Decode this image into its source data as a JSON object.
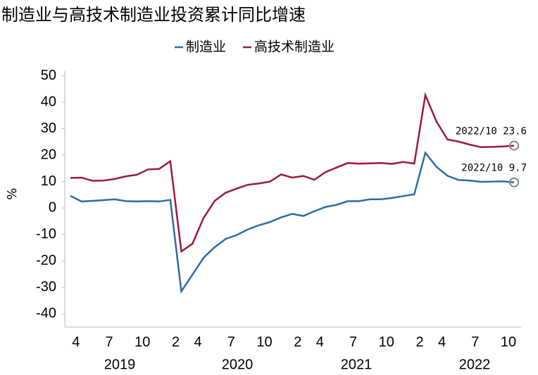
{
  "chart_data": {
    "type": "line",
    "title": "制造业与高技术制造业投资累计同比增速",
    "y_label": "%",
    "categories": [
      null,
      "4",
      null,
      null,
      "7",
      null,
      null,
      "10",
      null,
      null,
      "2",
      null,
      "4",
      null,
      null,
      "7",
      null,
      null,
      "10",
      null,
      null,
      "2",
      null,
      "4",
      null,
      null,
      "7",
      null,
      null,
      "10",
      null,
      null,
      "2",
      null,
      "4",
      null,
      null,
      "7",
      null,
      null,
      "10"
    ],
    "year_labels": [
      "2019",
      "2020",
      "2021",
      "2022"
    ],
    "series": [
      {
        "name": "制造业",
        "color": "#2e6ca4",
        "values": [
          4.6,
          2.5,
          2.7,
          3.0,
          3.3,
          2.6,
          2.5,
          2.6,
          2.5,
          3.1,
          -31.5,
          -25.2,
          -18.8,
          -14.8,
          -11.7,
          -10.2,
          -8.1,
          -6.5,
          -5.3,
          -3.5,
          -2.2,
          -3.0,
          -1.2,
          0.4,
          1.2,
          2.6,
          2.6,
          3.3,
          3.3,
          3.8,
          4.5,
          5.2,
          20.9,
          15.6,
          12.2,
          10.6,
          10.4,
          9.9,
          10.0,
          10.1,
          9.7
        ]
      },
      {
        "name": "高技术制造业",
        "color": "#9b1b3a",
        "values": [
          11.4,
          11.5,
          10.3,
          10.4,
          11.0,
          12.0,
          12.6,
          14.6,
          14.8,
          17.7,
          -16.4,
          -13.5,
          -3.8,
          2.7,
          5.8,
          7.4,
          8.8,
          9.3,
          10.0,
          12.7,
          11.5,
          12.1,
          10.7,
          13.6,
          15.3,
          17.0,
          16.8,
          16.9,
          17.0,
          16.7,
          17.4,
          16.8,
          42.7,
          32.7,
          25.9,
          25.1,
          24.0,
          23.0,
          23.1,
          23.3,
          23.6
        ]
      }
    ],
    "annotations": [
      "2022/10  23.6",
      "2022/10  9.7"
    ],
    "ylim": [
      -45,
      52
    ],
    "yticks": [
      -40,
      -30,
      -20,
      -10,
      0,
      10,
      20,
      30,
      40,
      50
    ],
    "legend": "top"
  }
}
